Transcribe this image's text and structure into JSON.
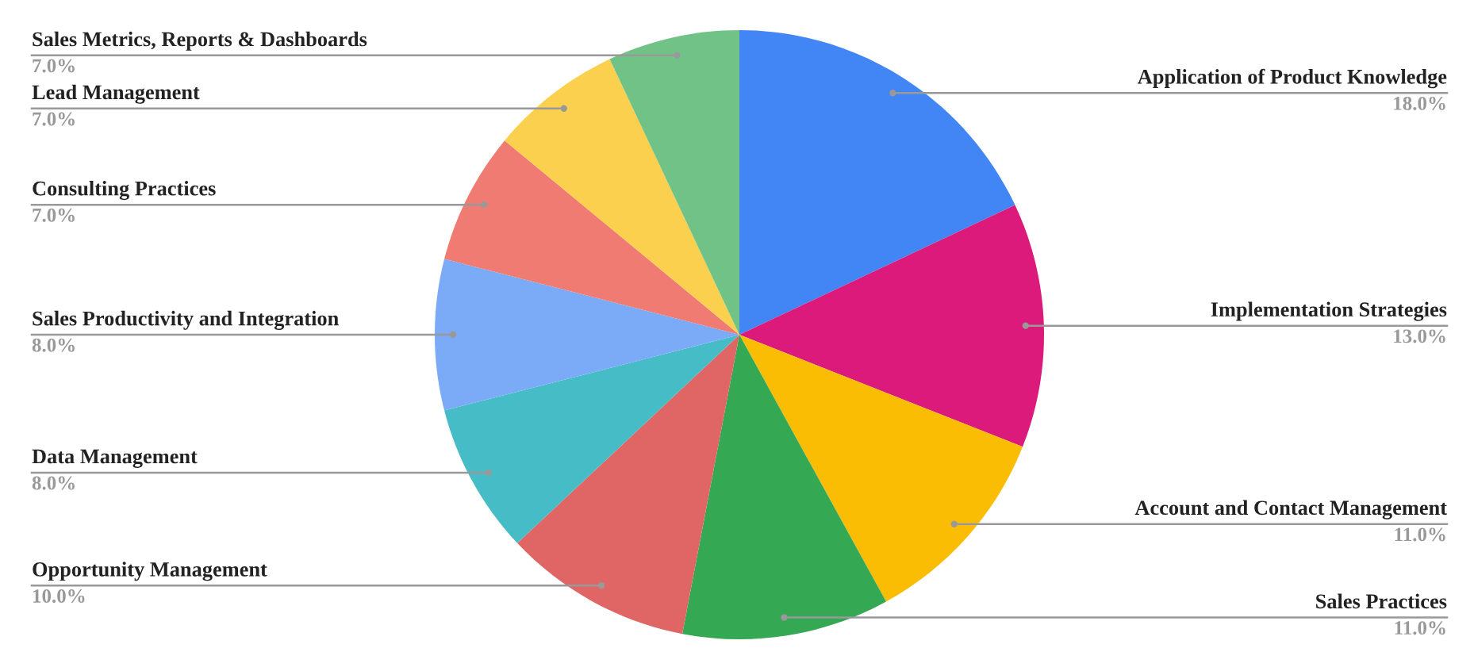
{
  "chart_data": {
    "type": "pie",
    "legend": false,
    "categories": [
      "Application of Product Knowledge",
      "Implementation Strategies",
      "Account and Contact Management",
      "Sales Practices",
      "Opportunity Management",
      "Data Management",
      "Sales Productivity and Integration",
      "Consulting Practices",
      "Lead Management",
      "Sales Metrics, Reports & Dashboards"
    ],
    "values": [
      18,
      13,
      11,
      11,
      10,
      8,
      8,
      7,
      7,
      7
    ],
    "value_labels": [
      "18.0%",
      "13.0%",
      "11.0%",
      "11.0%",
      "10.0%",
      "8.0%",
      "8.0%",
      "7.0%",
      "7.0%",
      "7.0%"
    ],
    "colors": [
      "#4285f4",
      "#db1a7b",
      "#fbbc04",
      "#34a853",
      "#e06666",
      "#46bdc6",
      "#7baaf7",
      "#f07b72",
      "#fcd04f",
      "#71c287"
    ]
  }
}
